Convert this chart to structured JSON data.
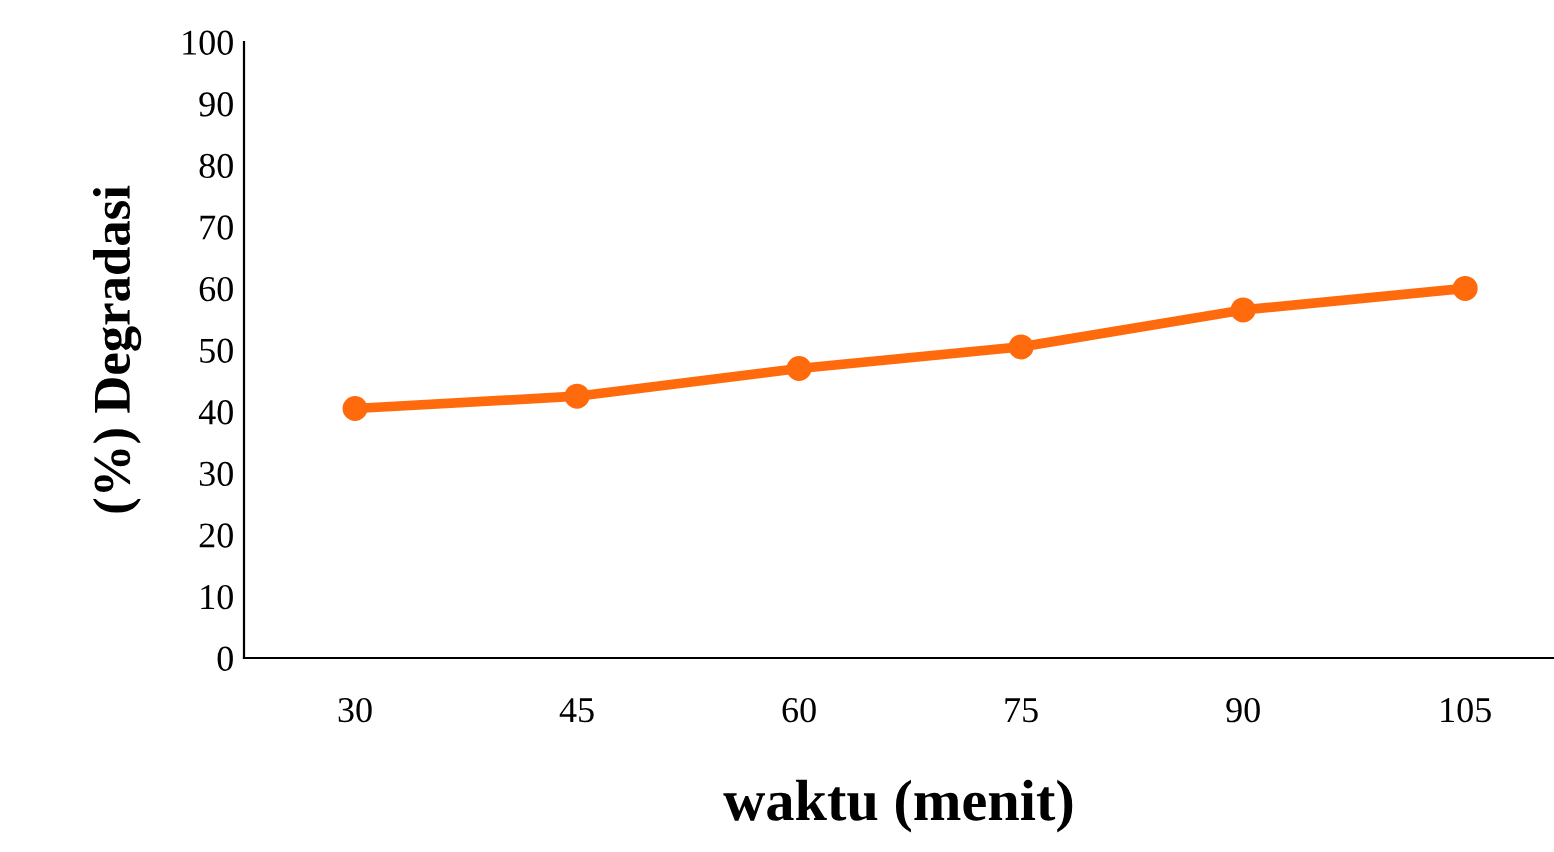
{
  "chart_data": {
    "type": "line",
    "xlabel": "waktu (menit)",
    "ylabel": "(%) Degradasi",
    "categories": [
      "30",
      "45",
      "60",
      "75",
      "90",
      "105"
    ],
    "series": [
      {
        "color": "#ff6a0d",
        "values": [
          40.5,
          42.5,
          47,
          50.5,
          56.5,
          60
        ]
      }
    ],
    "ylim": [
      0,
      100
    ],
    "yticks": [
      0,
      10,
      20,
      30,
      40,
      50,
      60,
      70,
      80,
      90,
      100
    ],
    "grid": false,
    "legend": false,
    "marker": "circle",
    "line_style": "solid"
  }
}
